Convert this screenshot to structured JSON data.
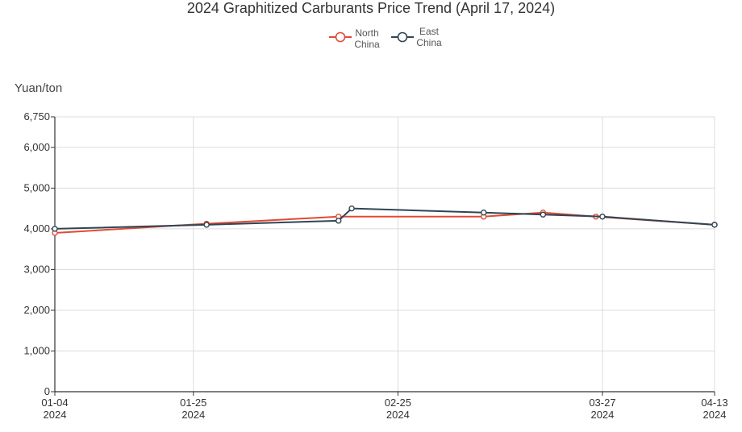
{
  "chart_data": {
    "type": "line",
    "title": "2024 Graphitized Carburants Price Trend  (April 17, 2024)",
    "ylabel": "Yuan/ton",
    "xlabel": "",
    "ylim": [
      0,
      6750
    ],
    "yticks": [
      "0",
      "1,000",
      "2,000",
      "3,000",
      "4,000",
      "5,000",
      "6,000",
      "6,750"
    ],
    "ytick_values": [
      0,
      1000,
      2000,
      3000,
      4000,
      5000,
      6000,
      6750
    ],
    "xlim": [
      "2024-01-04",
      "2024-04-13"
    ],
    "xticks": [
      {
        "value": "2024-01-04",
        "line1": "01-04",
        "line2": "2024"
      },
      {
        "value": "2024-01-25",
        "line1": "01-25",
        "line2": "2024"
      },
      {
        "value": "2024-02-25",
        "line1": "02-25",
        "line2": "2024"
      },
      {
        "value": "2024-03-27",
        "line1": "03-27",
        "line2": "2024"
      },
      {
        "value": "2024-04-13",
        "line1": "04-13",
        "line2": "2024"
      }
    ],
    "grid": true,
    "legend_position": "top-center",
    "series": [
      {
        "name": "North China",
        "color": "#e04b35",
        "points": [
          {
            "x": "2024-01-04",
            "y": 3900
          },
          {
            "x": "2024-01-27",
            "y": 4125
          },
          {
            "x": "2024-02-16",
            "y": 4300
          },
          {
            "x": "2024-03-09",
            "y": 4300
          },
          {
            "x": "2024-03-18",
            "y": 4400
          },
          {
            "x": "2024-03-26",
            "y": 4300
          },
          {
            "x": "2024-04-13",
            "y": 4100
          }
        ]
      },
      {
        "name": "East China",
        "color": "#2f4554",
        "points": [
          {
            "x": "2024-01-04",
            "y": 4000
          },
          {
            "x": "2024-01-27",
            "y": 4100
          },
          {
            "x": "2024-02-16",
            "y": 4200
          },
          {
            "x": "2024-02-18",
            "y": 4500
          },
          {
            "x": "2024-03-09",
            "y": 4400
          },
          {
            "x": "2024-03-18",
            "y": 4350
          },
          {
            "x": "2024-03-27",
            "y": 4300
          },
          {
            "x": "2024-04-13",
            "y": 4100
          }
        ]
      }
    ]
  },
  "legend": {
    "north": {
      "line1": "North",
      "line2": "China"
    },
    "east": {
      "line1": "East",
      "line2": "China"
    }
  }
}
